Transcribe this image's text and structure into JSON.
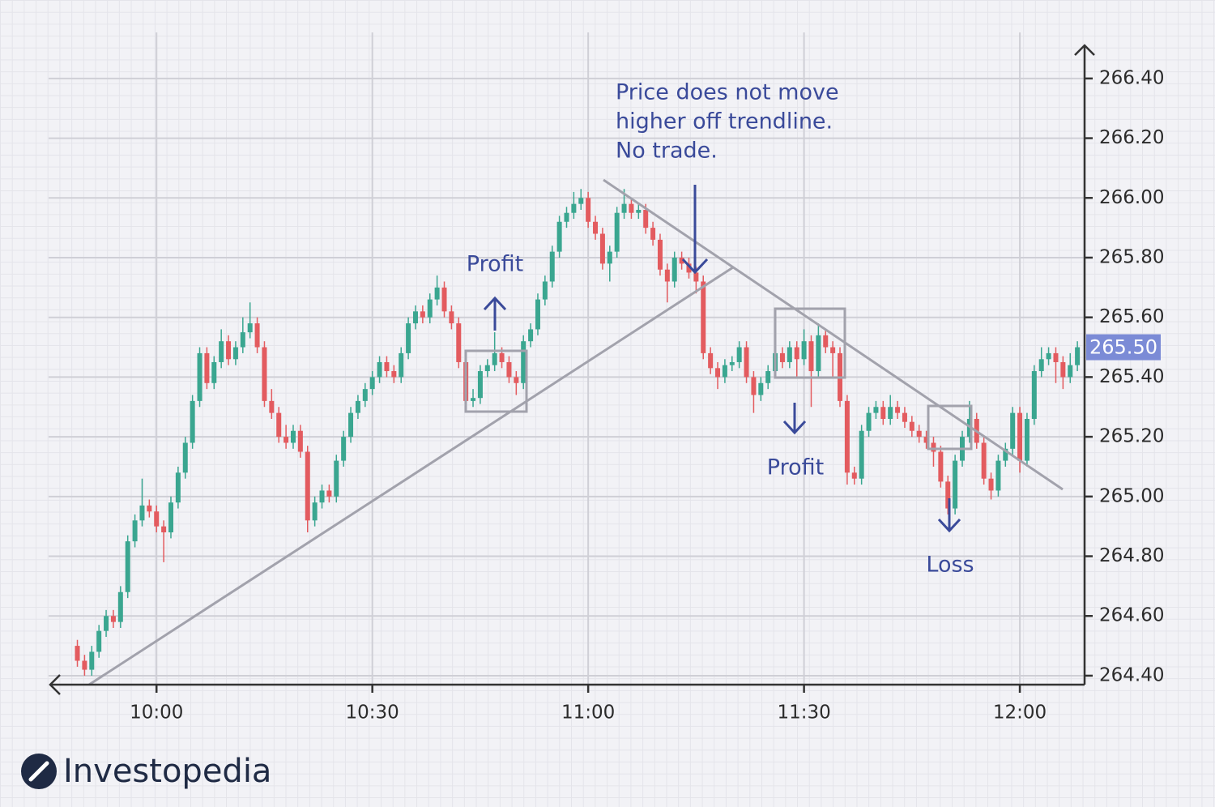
{
  "chart_data": {
    "type": "candlestick",
    "x": [
      "9:49",
      "9:50",
      "9:51",
      "9:52",
      "9:53",
      "9:54",
      "9:55",
      "9:56",
      "9:57",
      "9:58",
      "9:59",
      "10:00",
      "10:01",
      "10:02",
      "10:03",
      "10:04",
      "10:05",
      "10:06",
      "10:07",
      "10:08",
      "10:09",
      "10:10",
      "10:11",
      "10:12",
      "10:13",
      "10:14",
      "10:15",
      "10:16",
      "10:17",
      "10:18",
      "10:19",
      "10:20",
      "10:21",
      "10:22",
      "10:23",
      "10:24",
      "10:25",
      "10:26",
      "10:27",
      "10:28",
      "10:29",
      "10:30",
      "10:31",
      "10:32",
      "10:33",
      "10:34",
      "10:35",
      "10:36",
      "10:37",
      "10:38",
      "10:39",
      "10:40",
      "10:41",
      "10:42",
      "10:43",
      "10:44",
      "10:45",
      "10:46",
      "10:47",
      "10:48",
      "10:49",
      "10:50",
      "10:51",
      "10:52",
      "10:53",
      "10:54",
      "10:55",
      "10:56",
      "10:57",
      "10:58",
      "10:59",
      "11:00",
      "11:01",
      "11:02",
      "11:03",
      "11:04",
      "11:05",
      "11:06",
      "11:07",
      "11:08",
      "11:09",
      "11:10",
      "11:11",
      "11:12",
      "11:13",
      "11:14",
      "11:15",
      "11:16",
      "11:17",
      "11:18",
      "11:19",
      "11:20",
      "11:21",
      "11:22",
      "11:23",
      "11:24",
      "11:25",
      "11:26",
      "11:27",
      "11:28",
      "11:29",
      "11:30",
      "11:31",
      "11:32",
      "11:33",
      "11:34",
      "11:35",
      "11:36",
      "11:37",
      "11:38",
      "11:39",
      "11:40",
      "11:41",
      "11:42",
      "11:43",
      "11:44",
      "11:45",
      "11:46",
      "11:47",
      "11:48",
      "11:49",
      "11:50",
      "11:51",
      "11:52",
      "11:53",
      "11:54",
      "11:55",
      "11:56",
      "11:57",
      "11:58",
      "11:59",
      "12:00",
      "12:01",
      "12:02",
      "12:03",
      "12:04",
      "12:05",
      "12:06",
      "12:07",
      "12:08"
    ],
    "open": [
      264.5,
      264.45,
      264.42,
      264.48,
      264.55,
      264.6,
      264.58,
      264.68,
      264.85,
      264.92,
      264.97,
      264.95,
      264.9,
      264.88,
      264.98,
      265.08,
      265.18,
      265.32,
      265.48,
      265.38,
      265.45,
      265.52,
      265.46,
      265.5,
      265.55,
      265.58,
      265.5,
      265.32,
      265.28,
      265.2,
      265.18,
      265.22,
      265.15,
      264.92,
      264.98,
      265.02,
      265.0,
      265.12,
      265.2,
      265.28,
      265.32,
      265.36,
      265.4,
      265.45,
      265.42,
      265.4,
      265.48,
      265.58,
      265.62,
      265.6,
      265.66,
      265.7,
      265.62,
      265.58,
      265.45,
      265.32,
      265.33,
      265.42,
      265.44,
      265.48,
      265.45,
      265.4,
      265.38,
      265.52,
      265.56,
      265.66,
      265.72,
      265.82,
      265.92,
      265.95,
      265.98,
      266.0,
      265.92,
      265.88,
      265.78,
      265.82,
      265.95,
      265.98,
      265.95,
      265.96,
      265.9,
      265.86,
      265.76,
      265.72,
      265.8,
      265.78,
      265.75,
      265.72,
      265.48,
      265.43,
      265.4,
      265.44,
      265.45,
      265.5,
      265.4,
      265.34,
      265.38,
      265.42,
      265.48,
      265.45,
      265.5,
      265.46,
      265.52,
      265.42,
      265.54,
      265.5,
      265.48,
      265.32,
      265.08,
      265.06,
      265.22,
      265.28,
      265.3,
      265.26,
      265.3,
      265.28,
      265.25,
      265.22,
      265.2,
      265.18,
      265.15,
      265.05,
      264.96,
      265.12,
      265.2,
      265.26,
      265.18,
      265.06,
      265.02,
      265.12,
      265.16,
      265.28,
      265.12,
      265.26,
      265.42,
      265.46,
      265.48,
      265.45,
      265.4,
      265.44
    ],
    "high": [
      264.52,
      264.47,
      264.5,
      264.57,
      264.62,
      264.62,
      264.7,
      264.87,
      264.94,
      265.06,
      264.99,
      264.97,
      264.92,
      265.0,
      265.1,
      265.2,
      265.34,
      265.5,
      265.5,
      265.47,
      265.56,
      265.54,
      265.52,
      265.6,
      265.65,
      265.6,
      265.52,
      265.36,
      265.3,
      265.24,
      265.24,
      265.24,
      265.17,
      265.0,
      265.04,
      265.04,
      265.14,
      265.22,
      265.3,
      265.34,
      265.38,
      265.42,
      265.47,
      265.47,
      265.44,
      265.5,
      265.6,
      265.64,
      265.64,
      265.68,
      265.74,
      265.72,
      265.64,
      265.6,
      265.47,
      265.36,
      265.44,
      265.46,
      265.55,
      265.5,
      265.47,
      265.42,
      265.54,
      265.58,
      265.68,
      265.74,
      265.84,
      265.94,
      265.97,
      266.02,
      266.03,
      266.02,
      265.94,
      265.9,
      265.84,
      265.97,
      266.03,
      266.0,
      265.98,
      265.98,
      265.92,
      265.88,
      265.78,
      265.82,
      265.82,
      265.8,
      265.77,
      265.74,
      265.5,
      265.45,
      265.46,
      265.47,
      265.52,
      265.52,
      265.42,
      265.4,
      265.44,
      265.5,
      265.5,
      265.52,
      265.52,
      265.56,
      265.54,
      265.58,
      265.56,
      265.52,
      265.5,
      265.34,
      265.1,
      265.24,
      265.3,
      265.32,
      265.32,
      265.34,
      265.32,
      265.3,
      265.27,
      265.24,
      265.22,
      265.2,
      265.17,
      265.07,
      265.14,
      265.22,
      265.32,
      265.28,
      265.2,
      265.08,
      265.14,
      265.18,
      265.3,
      265.3,
      265.28,
      265.44,
      265.5,
      265.5,
      265.5,
      265.47,
      265.48,
      265.52
    ],
    "low": [
      264.43,
      264.4,
      264.4,
      264.46,
      264.53,
      264.56,
      264.56,
      264.66,
      264.83,
      264.9,
      264.93,
      264.88,
      264.78,
      264.86,
      264.96,
      265.06,
      265.16,
      265.3,
      265.36,
      265.36,
      265.43,
      265.44,
      265.44,
      265.48,
      265.53,
      265.48,
      265.3,
      265.26,
      265.18,
      265.16,
      265.16,
      265.13,
      264.88,
      264.9,
      264.96,
      264.98,
      264.98,
      265.1,
      265.18,
      265.26,
      265.3,
      265.34,
      265.38,
      265.4,
      265.38,
      265.38,
      265.46,
      265.56,
      265.58,
      265.58,
      265.64,
      265.6,
      265.56,
      265.43,
      265.3,
      265.3,
      265.31,
      265.4,
      265.42,
      265.43,
      265.38,
      265.34,
      265.36,
      265.5,
      265.54,
      265.64,
      265.7,
      265.8,
      265.9,
      265.93,
      265.96,
      265.9,
      265.86,
      265.76,
      265.72,
      265.8,
      265.93,
      265.93,
      265.93,
      265.88,
      265.84,
      265.74,
      265.65,
      265.7,
      265.76,
      265.73,
      265.68,
      265.46,
      265.41,
      265.36,
      265.38,
      265.42,
      265.43,
      265.38,
      265.28,
      265.32,
      265.36,
      265.4,
      265.43,
      265.43,
      265.4,
      265.44,
      265.3,
      265.4,
      265.48,
      265.4,
      265.3,
      265.04,
      265.04,
      265.04,
      265.2,
      265.26,
      265.24,
      265.24,
      265.26,
      265.23,
      265.2,
      265.18,
      265.16,
      265.1,
      265.03,
      264.94,
      264.94,
      265.1,
      265.18,
      265.16,
      265.04,
      264.99,
      265.0,
      265.1,
      265.14,
      265.08,
      265.1,
      265.24,
      265.4,
      265.44,
      265.38,
      265.36,
      265.38,
      265.42
    ],
    "close": [
      264.45,
      264.42,
      264.48,
      264.55,
      264.6,
      264.58,
      264.68,
      264.85,
      264.92,
      264.97,
      264.95,
      264.9,
      264.88,
      264.98,
      265.08,
      265.18,
      265.32,
      265.48,
      265.38,
      265.45,
      265.52,
      265.46,
      265.5,
      265.55,
      265.58,
      265.5,
      265.32,
      265.28,
      265.2,
      265.18,
      265.22,
      265.15,
      264.92,
      264.98,
      265.02,
      265.0,
      265.12,
      265.2,
      265.28,
      265.32,
      265.36,
      265.4,
      265.45,
      265.42,
      265.4,
      265.48,
      265.58,
      265.62,
      265.6,
      265.66,
      265.7,
      265.62,
      265.58,
      265.45,
      265.32,
      265.33,
      265.42,
      265.44,
      265.48,
      265.45,
      265.4,
      265.38,
      265.52,
      265.56,
      265.66,
      265.72,
      265.82,
      265.92,
      265.95,
      265.98,
      266.0,
      265.92,
      265.88,
      265.78,
      265.82,
      265.95,
      265.98,
      265.95,
      265.96,
      265.9,
      265.86,
      265.76,
      265.72,
      265.8,
      265.78,
      265.75,
      265.72,
      265.48,
      265.43,
      265.4,
      265.44,
      265.45,
      265.5,
      265.4,
      265.34,
      265.38,
      265.42,
      265.48,
      265.45,
      265.5,
      265.46,
      265.52,
      265.42,
      265.54,
      265.5,
      265.48,
      265.32,
      265.08,
      265.06,
      265.22,
      265.28,
      265.3,
      265.26,
      265.3,
      265.28,
      265.25,
      265.22,
      265.2,
      265.18,
      265.15,
      265.05,
      264.96,
      265.12,
      265.2,
      265.26,
      265.18,
      265.06,
      265.02,
      265.12,
      265.16,
      265.28,
      265.12,
      265.26,
      265.42,
      265.46,
      265.48,
      265.45,
      265.4,
      265.44,
      265.5
    ],
    "up_color": "#3aa690",
    "down_color": "#e35b5f",
    "xlim": [
      "9:45",
      "12:09"
    ],
    "xticks": [
      "10:00",
      "10:30",
      "11:00",
      "11:30",
      "12:00"
    ],
    "ylim": [
      264.37,
      266.5
    ],
    "yticks": [
      {
        "value": 264.4,
        "label": "264.40"
      },
      {
        "value": 264.6,
        "label": "264.60"
      },
      {
        "value": 264.8,
        "label": "264.80"
      },
      {
        "value": 265,
        "label": "265.00"
      },
      {
        "value": 265.2,
        "label": "265.20"
      },
      {
        "value": 265.4,
        "label": "265.40"
      },
      {
        "value": 265.6,
        "label": "265.60"
      },
      {
        "value": 265.8,
        "label": "265.80"
      },
      {
        "value": 266,
        "label": "266.00"
      },
      {
        "value": 266.2,
        "label": "266.20"
      },
      {
        "value": 266.4,
        "label": "266.40"
      }
    ],
    "grid": true,
    "price_label": {
      "value": 265.5,
      "label": "265.50"
    },
    "annotations": [
      {
        "lines": [
          "Price does not move",
          "higher off trendline.",
          "No trade."
        ]
      },
      {
        "lines": [
          "Profit"
        ]
      },
      {
        "lines": [
          "Profit"
        ]
      },
      {
        "lines": [
          "Loss"
        ]
      }
    ]
  },
  "brand": "Investopedia"
}
